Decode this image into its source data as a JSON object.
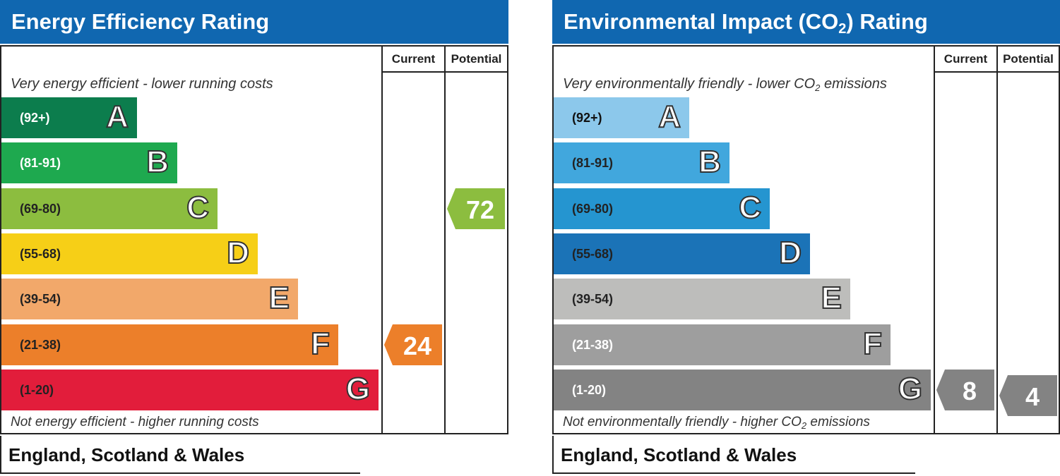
{
  "chart_data": [
    {
      "type": "bar",
      "title": "Energy Efficiency Rating",
      "column_headers": [
        "Current",
        "Potential"
      ],
      "top_caption": "Very energy efficient - lower running costs",
      "bottom_caption": "Not energy efficient - higher running costs",
      "footer": "England, Scotland & Wales",
      "bands": [
        {
          "letter": "A",
          "range": "(92+)",
          "color": "#0c7d4d",
          "text_color": "#ffffff"
        },
        {
          "letter": "B",
          "range": "(81-91)",
          "color": "#1ea94f",
          "text_color": "#ffffff"
        },
        {
          "letter": "C",
          "range": "(69-80)",
          "color": "#8cbd3f",
          "text_color": "#222222"
        },
        {
          "letter": "D",
          "range": "(55-68)",
          "color": "#f6cf17",
          "text_color": "#222222"
        },
        {
          "letter": "E",
          "range": "(39-54)",
          "color": "#f2a86a",
          "text_color": "#222222"
        },
        {
          "letter": "F",
          "range": "(21-38)",
          "color": "#ec7f2a",
          "text_color": "#222222"
        },
        {
          "letter": "G",
          "range": "(1-20)",
          "color": "#e21d3b",
          "text_color": "#222222"
        }
      ],
      "current": {
        "value": "24",
        "band": "F",
        "color": "#ec7f2a"
      },
      "potential": {
        "value": "72",
        "band": "C",
        "color": "#8cbd3f"
      }
    },
    {
      "type": "bar",
      "title_main": "Environmental Impact (CO",
      "title_sub": "2",
      "title_end": ") Rating",
      "column_headers": [
        "Current",
        "Potential"
      ],
      "top_caption_main": "Very environmentally friendly - lower CO",
      "top_caption_sub": "2",
      "top_caption_end": " emissions",
      "bottom_caption_main": "Not environmentally friendly - higher CO",
      "bottom_caption_sub": "2",
      "bottom_caption_end": " emissions",
      "footer": "England, Scotland & Wales",
      "bands": [
        {
          "letter": "A",
          "range": "(92+)",
          "color": "#8cc8eb",
          "text_color": "#111111"
        },
        {
          "letter": "B",
          "range": "(81-91)",
          "color": "#41a7dd",
          "text_color": "#222222"
        },
        {
          "letter": "C",
          "range": "(69-80)",
          "color": "#2595d0",
          "text_color": "#222222"
        },
        {
          "letter": "D",
          "range": "(55-68)",
          "color": "#1b73b7",
          "text_color": "#222222"
        },
        {
          "letter": "E",
          "range": "(39-54)",
          "color": "#bdbdbb",
          "text_color": "#222222"
        },
        {
          "letter": "F",
          "range": "(21-38)",
          "color": "#9e9e9e",
          "text_color": "#ffffff"
        },
        {
          "letter": "G",
          "range": "(1-20)",
          "color": "#838383",
          "text_color": "#ffffff"
        }
      ],
      "current": {
        "value": "8",
        "band": "G",
        "color": "#838383"
      },
      "potential": {
        "value": "4",
        "band": "G",
        "color": "#838383"
      }
    }
  ]
}
